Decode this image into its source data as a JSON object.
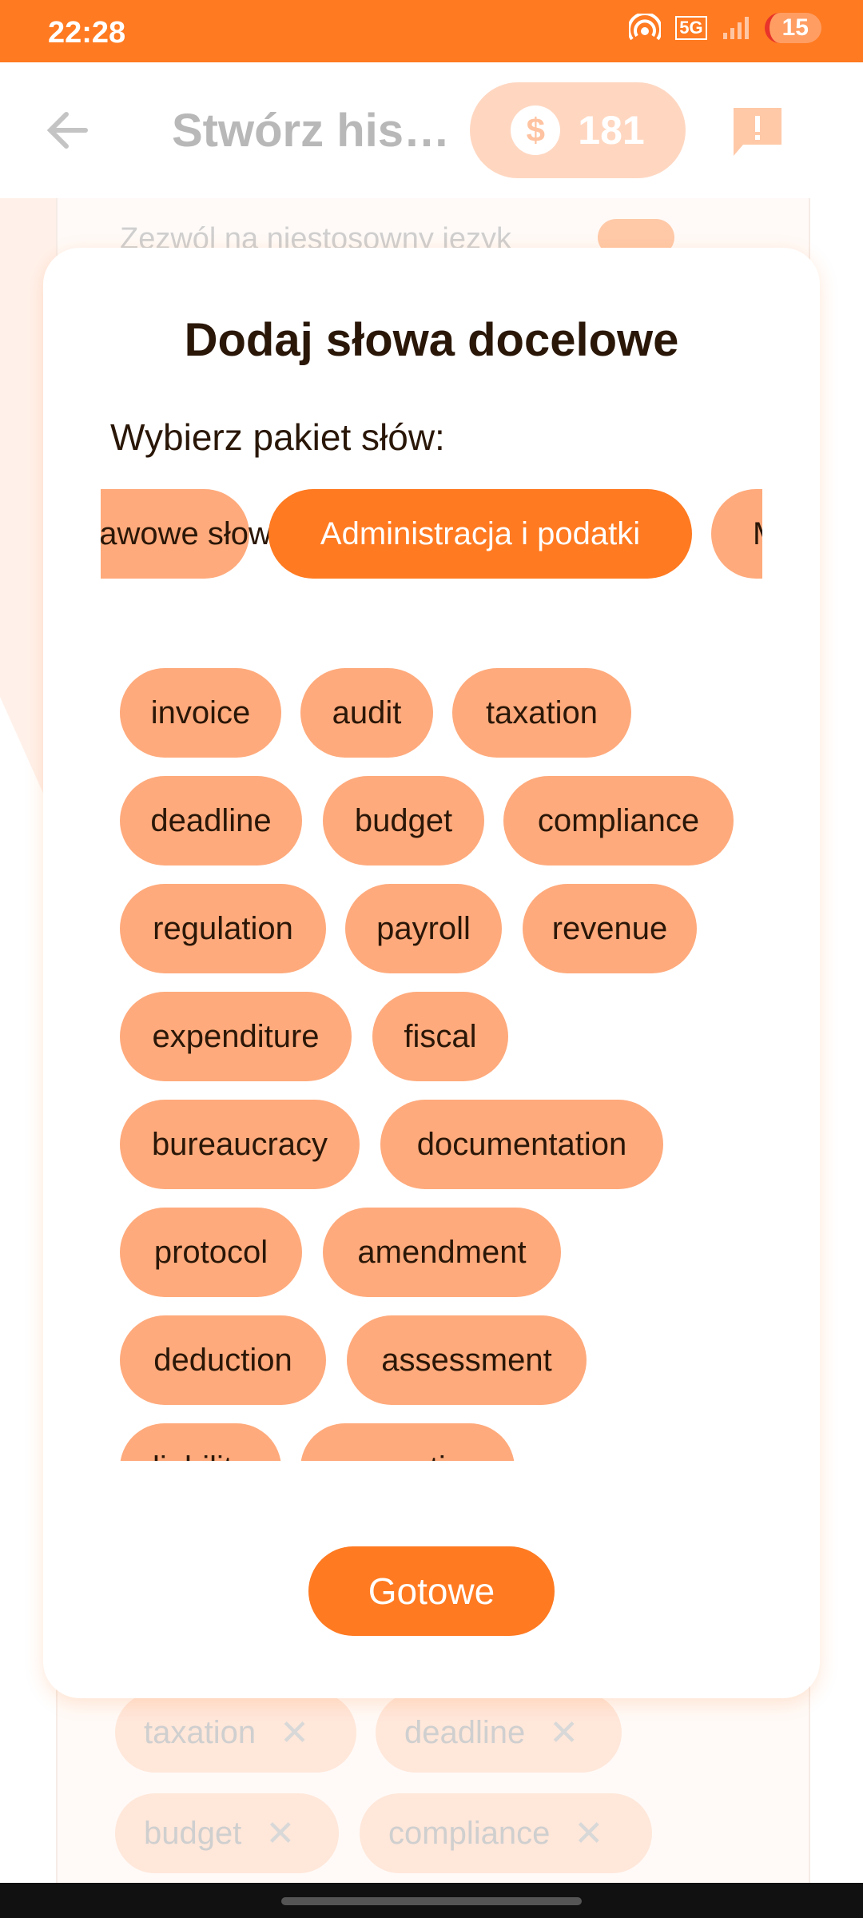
{
  "status_bar": {
    "time": "22:28",
    "network": "5G",
    "battery": "15"
  },
  "app_bar": {
    "title": "Stwórz historię",
    "coins": "181",
    "coin_symbol": "$"
  },
  "background": {
    "toggle_label": "Zezwól na niestosowny język",
    "selected_words": [
      {
        "label": "taxation"
      },
      {
        "label": "deadline"
      },
      {
        "label": "budget"
      },
      {
        "label": "compliance"
      }
    ]
  },
  "dialog": {
    "title": "Dodaj słowa docelowe",
    "pack_label": "Wybierz pakiet słów:",
    "packs": [
      {
        "label": "Podstawowe słowa",
        "active": false
      },
      {
        "label": "Administracja i podatki",
        "active": true
      },
      {
        "label": "M",
        "active": false
      }
    ],
    "words": [
      "invoice",
      "audit",
      "taxation",
      "deadline",
      "budget",
      "compliance",
      "regulation",
      "payroll",
      "revenue",
      "expenditure",
      "fiscal",
      "bureaucracy",
      "documentation",
      "protocol",
      "amendment",
      "deduction",
      "assessment",
      "liability",
      "exemption"
    ],
    "done_label": "Gotowe"
  },
  "colors": {
    "accent": "#FF7A21",
    "chip": "#FFAA7C",
    "text_dark": "#2a1708"
  }
}
